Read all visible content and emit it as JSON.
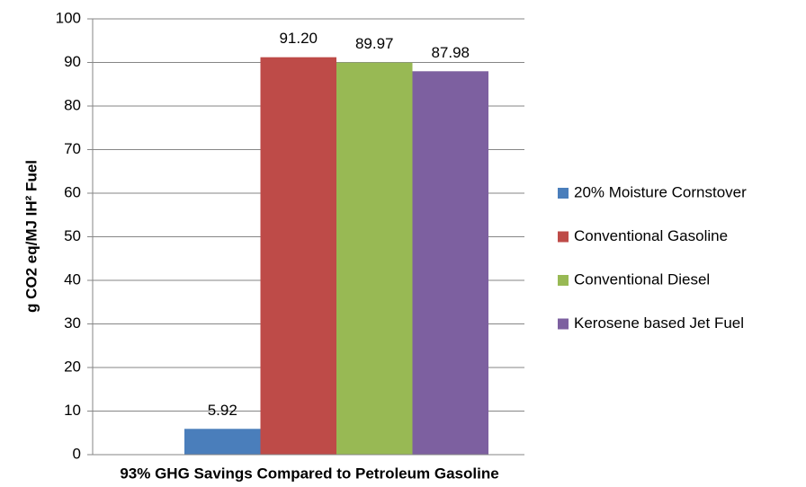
{
  "chart_data": {
    "type": "bar",
    "x_label": "93% GHG Savings Compared to Petroleum Gasoline",
    "y_label": "g CO2 eq/MJ IH² Fuel",
    "series": [
      {
        "name": "20% Moisture Cornstover",
        "color": "#4a7ebb",
        "values": [
          5.92
        ]
      },
      {
        "name": "Conventional Gasoline",
        "color": "#be4b48",
        "values": [
          91.2
        ],
        "value_labels": [
          "91.20"
        ]
      },
      {
        "name": "Conventional Diesel",
        "color": "#98b954",
        "values": [
          89.97
        ]
      },
      {
        "name": "Kerosene based Jet Fuel",
        "color": "#7d60a0",
        "values": [
          87.98
        ]
      }
    ],
    "ylim": [
      0,
      100
    ],
    "yticks": [
      0,
      10,
      20,
      30,
      40,
      50,
      60,
      70,
      80,
      90,
      100
    ],
    "grid": true,
    "legend": "right"
  }
}
